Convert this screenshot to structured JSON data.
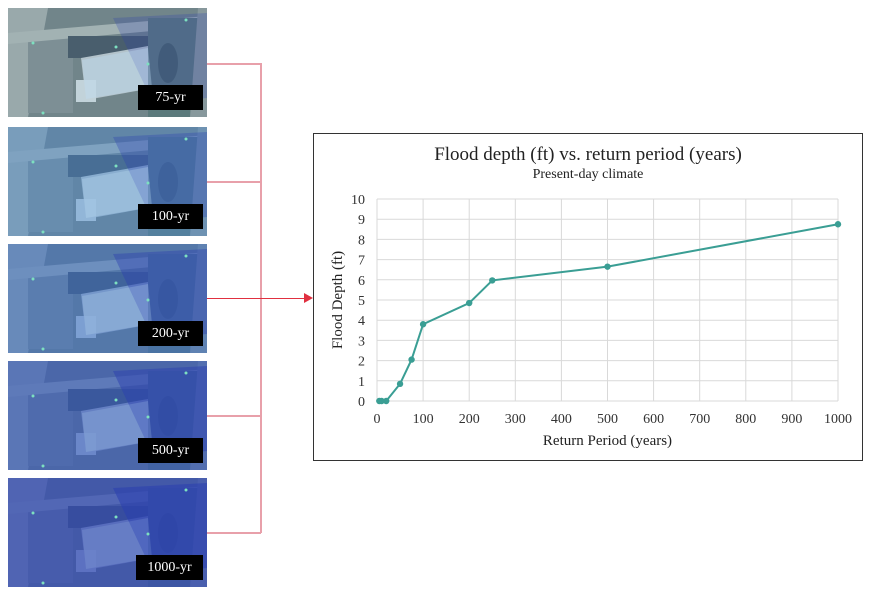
{
  "tiles": [
    {
      "label": "75-yr",
      "tint": "#7fb8e0",
      "opacity": 0.35
    },
    {
      "label": "100-yr",
      "tint": "#5a9ad8",
      "opacity": 0.6
    },
    {
      "label": "200-yr",
      "tint": "#4a7fcf",
      "opacity": 0.68
    },
    {
      "label": "500-yr",
      "tint": "#3f66c4",
      "opacity": 0.74
    },
    {
      "label": "1000-yr",
      "tint": "#3a55bc",
      "opacity": 0.8
    }
  ],
  "colors": {
    "series": "#3a9e94",
    "connector": "#e8a0aa",
    "arrow": "#e03040",
    "grid": "#d9d9d9"
  },
  "chart": {
    "title": "Flood depth (ft) vs. return period (years)",
    "subtitle": "Present-day climate",
    "xlabel": "Return Period (years)",
    "ylabel": "Flood Depth (ft)"
  },
  "chart_data": {
    "type": "line",
    "title": "Flood depth (ft) vs. return period (years)",
    "subtitle": "Present-day climate",
    "xlabel": "Return Period (years)",
    "ylabel": "Flood Depth (ft)",
    "xlim": [
      0,
      1000
    ],
    "ylim": [
      0,
      10
    ],
    "xticks": [
      0,
      100,
      200,
      300,
      400,
      500,
      600,
      700,
      800,
      900,
      1000
    ],
    "yticks": [
      0,
      1,
      2,
      3,
      4,
      5,
      6,
      7,
      8,
      9,
      10
    ],
    "grid": true,
    "legend": null,
    "series": [
      {
        "name": "Flood depth",
        "x": [
          5,
          10,
          20,
          50,
          75,
          100,
          200,
          250,
          500,
          1000
        ],
        "y": [
          0,
          0,
          0,
          0.85,
          2.05,
          3.8,
          4.85,
          5.97,
          6.65,
          8.75
        ]
      }
    ]
  }
}
